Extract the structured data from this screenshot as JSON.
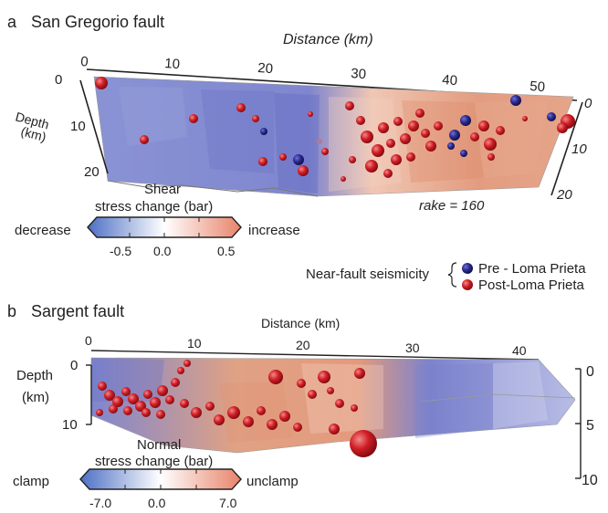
{
  "panel_a": {
    "letter": "a",
    "title": "San Gregorio fault",
    "distance_label": "Distance (km)",
    "distance_ticks": [
      "0",
      "10",
      "20",
      "30",
      "40",
      "50"
    ],
    "depth_label_line1": "Depth",
    "depth_label_line2": "(km)",
    "depth_ticks_left": [
      "0",
      "10",
      "20"
    ],
    "depth_ticks_right": [
      "0",
      "10",
      "20"
    ],
    "rake_text": "rake = 160",
    "colorbar": {
      "title_line1": "Shear",
      "title_line2": "stress change (bar)",
      "left_word": "decrease",
      "right_word": "increase",
      "ticks": [
        "-0.5",
        "0.0",
        "0.5"
      ],
      "color_low": "#4d6fc4",
      "color_mid": "#ffffff",
      "color_high": "#e8836a"
    }
  },
  "legend": {
    "label": "Near-fault seismicity",
    "pre": "Pre - Loma Prieta",
    "post": "Post-Loma Prieta",
    "pre_color": "#2a2a8c",
    "post_color": "#d01d24"
  },
  "panel_b": {
    "letter": "b",
    "title": "Sargent fault",
    "distance_label": "Distance (km)",
    "distance_ticks": [
      "0",
      "10",
      "20",
      "30",
      "40"
    ],
    "depth_label_line1": "Depth",
    "depth_label_line2": "(km)",
    "depth_ticks_left": [
      "0",
      "10"
    ],
    "depth_ticks_right": [
      "0",
      "5",
      "10"
    ],
    "colorbar": {
      "title_line1": "Normal",
      "title_line2": "stress change (bar)",
      "left_word": "clamp",
      "right_word": "unclamp",
      "ticks": [
        "-7.0",
        "0.0",
        "7.0"
      ],
      "color_low": "#4d6fc4",
      "color_mid": "#ffffff",
      "color_high": "#e8836a"
    }
  }
}
